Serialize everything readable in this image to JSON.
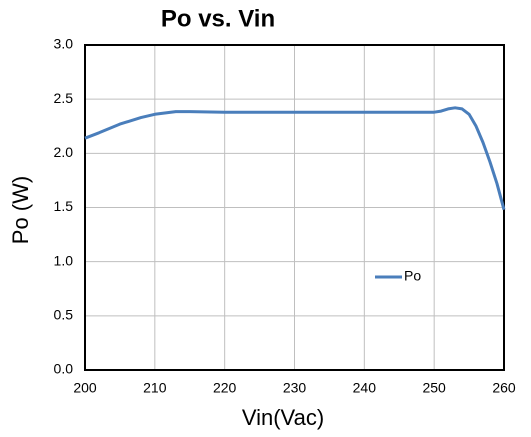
{
  "chart_data": {
    "type": "line",
    "title": "Po vs. Vin",
    "x_label": "Vin(Vac)",
    "y_label": "Po (W)",
    "x": [
      200,
      202,
      205,
      208,
      210,
      213,
      215,
      220,
      230,
      240,
      250,
      251,
      252,
      253,
      254,
      255,
      256,
      257,
      258,
      259,
      260
    ],
    "series": [
      {
        "name": "Po",
        "color": "#4a7ebb",
        "values": [
          2.14,
          2.19,
          2.27,
          2.33,
          2.36,
          2.385,
          2.385,
          2.38,
          2.38,
          2.38,
          2.38,
          2.39,
          2.41,
          2.42,
          2.41,
          2.36,
          2.25,
          2.1,
          1.92,
          1.72,
          1.48
        ]
      }
    ],
    "xlim": [
      200,
      260
    ],
    "xticks": [
      200,
      210,
      220,
      230,
      240,
      250,
      260
    ],
    "ylim": [
      0,
      3
    ],
    "yticks": [
      {
        "value": 0,
        "label": "0.0"
      },
      {
        "value": 0.5,
        "label": "0.5"
      },
      {
        "value": 1,
        "label": "1.0"
      },
      {
        "value": 1.5,
        "label": "1.5"
      },
      {
        "value": 2,
        "label": "2.0"
      },
      {
        "value": 2.5,
        "label": "2.5"
      },
      {
        "value": 3,
        "label": "3.0"
      }
    ],
    "grid": true,
    "legend": "lower-right"
  }
}
